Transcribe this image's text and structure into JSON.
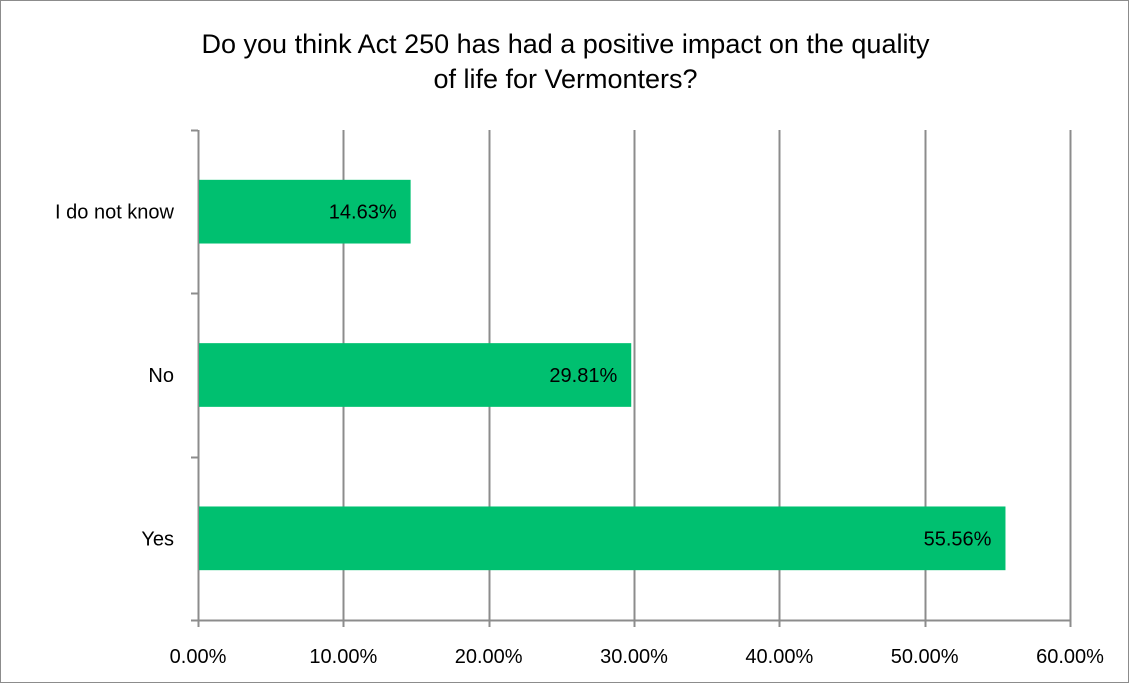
{
  "chart_data": {
    "type": "bar",
    "orientation": "horizontal",
    "title_lines": [
      "Do you think Act 250 has had a positive impact on the quality",
      "of life for Vermonters?"
    ],
    "categories": [
      "Yes",
      "No",
      "I do not know"
    ],
    "values": [
      55.56,
      29.81,
      14.63
    ],
    "data_labels": [
      "55.56%",
      "29.81%",
      "14.63%"
    ],
    "xlim": [
      0,
      60
    ],
    "x_ticks": [
      0,
      10,
      20,
      30,
      40,
      50,
      60
    ],
    "x_tick_labels": [
      "0.00%",
      "10.00%",
      "20.00%",
      "30.00%",
      "40.00%",
      "50.00%",
      "60.00%"
    ],
    "xlabel": "",
    "ylabel": "",
    "grid": "vertical",
    "legend": "none",
    "bar_color": "#00c070",
    "grid_color": "#8c8c8c"
  }
}
